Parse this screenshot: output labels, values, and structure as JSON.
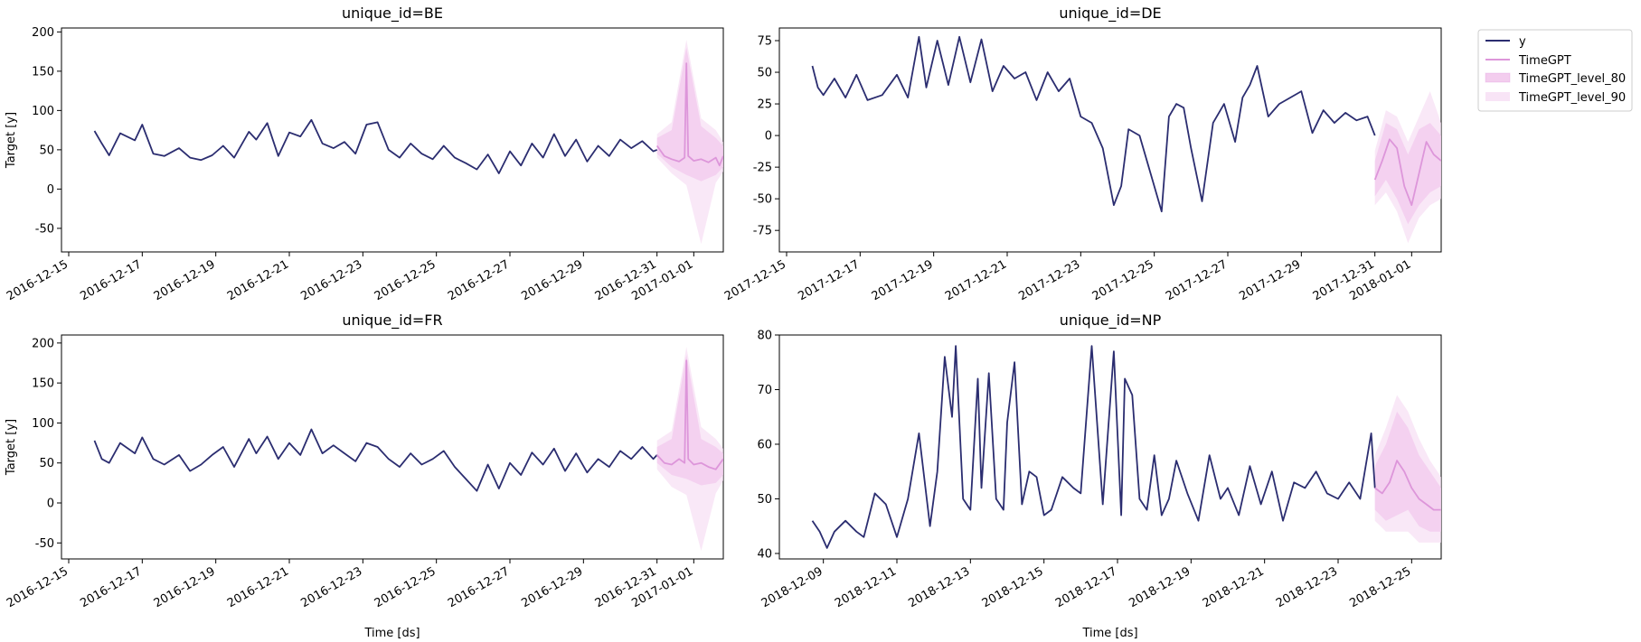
{
  "colors": {
    "actual": "#2b2d70",
    "forecast": "#dd96da",
    "band80": "#f3cdee",
    "band90": "#f8e4f6"
  },
  "legend": {
    "position": "outside-right",
    "entries": [
      "y",
      "TimeGPT",
      "TimeGPT_level_80",
      "TimeGPT_level_90"
    ]
  },
  "chart_data": [
    {
      "type": "line",
      "title": "unique_id=BE",
      "xlabel": "",
      "ylabel": "Target [y]",
      "x_range": [
        "2016-12-15",
        "2017-01-01"
      ],
      "ylim": [
        -80,
        205
      ],
      "y_ticks": [
        -50,
        0,
        50,
        100,
        150,
        200
      ],
      "x_ticks": [
        "2016-12-15",
        "2016-12-17",
        "2016-12-19",
        "2016-12-21",
        "2016-12-23",
        "2016-12-25",
        "2016-12-27",
        "2016-12-29",
        "2016-12-31",
        "2017-01-01"
      ],
      "series": [
        {
          "name": "y",
          "x_days": [
            0.7,
            0.9,
            1.1,
            1.4,
            1.8,
            2.0,
            2.3,
            2.6,
            3.0,
            3.3,
            3.6,
            3.9,
            4.2,
            4.5,
            4.9,
            5.1,
            5.4,
            5.7,
            6.0,
            6.3,
            6.6,
            6.9,
            7.2,
            7.5,
            7.8,
            8.1,
            8.4,
            8.7,
            9.0,
            9.3,
            9.6,
            9.9,
            10.2,
            10.5,
            10.8,
            11.1,
            11.4,
            11.7,
            12.0,
            12.3,
            12.6,
            12.9,
            13.2,
            13.5,
            13.8,
            14.1,
            14.4,
            14.7,
            15.0,
            15.3,
            15.6,
            15.9,
            16.0
          ],
          "values": [
            74,
            58,
            43,
            71,
            62,
            82,
            45,
            42,
            52,
            40,
            37,
            43,
            55,
            40,
            73,
            63,
            84,
            42,
            72,
            67,
            88,
            58,
            52,
            60,
            45,
            82,
            85,
            50,
            40,
            58,
            45,
            38,
            55,
            40,
            33,
            25,
            44,
            20,
            48,
            30,
            58,
            40,
            70,
            42,
            63,
            35,
            55,
            42,
            63,
            52,
            61,
            48,
            50
          ]
        },
        {
          "name": "TimeGPT",
          "x_days": [
            16.0,
            16.2,
            16.4,
            16.6,
            16.75,
            16.8,
            16.85,
            17.0,
            17.2,
            17.4,
            17.6,
            17.7,
            17.8
          ],
          "values": [
            55,
            42,
            38,
            35,
            40,
            160,
            42,
            36,
            38,
            34,
            40,
            30,
            42
          ]
        },
        {
          "name": "TimeGPT_level_80",
          "x_days": [
            16.0,
            16.4,
            16.8,
            17.2,
            17.6,
            17.8
          ],
          "lower": [
            45,
            28,
            18,
            10,
            18,
            28
          ],
          "upper": [
            65,
            75,
            180,
            80,
            65,
            55
          ]
        },
        {
          "name": "TimeGPT_level_90",
          "x_days": [
            16.0,
            16.4,
            16.8,
            17.2,
            17.6,
            17.8
          ],
          "lower": [
            40,
            20,
            5,
            -70,
            8,
            22
          ],
          "upper": [
            70,
            85,
            190,
            90,
            75,
            60
          ]
        }
      ]
    },
    {
      "type": "line",
      "title": "unique_id=DE",
      "xlabel": "",
      "ylabel": "",
      "x_range": [
        "2017-12-15",
        "2018-01-01"
      ],
      "ylim": [
        -92,
        85
      ],
      "y_ticks": [
        -75,
        -50,
        -25,
        0,
        25,
        50,
        75
      ],
      "x_ticks": [
        "2017-12-15",
        "2017-12-17",
        "2017-12-19",
        "2017-12-21",
        "2017-12-23",
        "2017-12-25",
        "2017-12-27",
        "2017-12-29",
        "2017-12-31",
        "2018-01-01"
      ],
      "series": [
        {
          "name": "y",
          "x_days": [
            0.7,
            0.85,
            1.0,
            1.3,
            1.6,
            1.9,
            2.2,
            2.6,
            3.0,
            3.3,
            3.6,
            3.8,
            4.1,
            4.4,
            4.7,
            5.0,
            5.3,
            5.6,
            5.9,
            6.2,
            6.5,
            6.8,
            7.1,
            7.4,
            7.7,
            8.0,
            8.3,
            8.6,
            8.9,
            9.1,
            9.3,
            9.6,
            9.9,
            10.2,
            10.4,
            10.6,
            10.8,
            11.0,
            11.3,
            11.6,
            11.9,
            12.2,
            12.4,
            12.6,
            12.8,
            13.1,
            13.4,
            13.7,
            14.0,
            14.3,
            14.6,
            14.9,
            15.2,
            15.5,
            15.8,
            16.0
          ],
          "values": [
            55,
            38,
            32,
            45,
            30,
            48,
            28,
            32,
            48,
            30,
            78,
            38,
            75,
            40,
            78,
            42,
            76,
            35,
            55,
            45,
            50,
            28,
            50,
            35,
            45,
            15,
            10,
            -10,
            -55,
            -40,
            5,
            0,
            -30,
            -60,
            15,
            25,
            22,
            -10,
            -52,
            10,
            25,
            -5,
            30,
            40,
            55,
            15,
            25,
            30,
            35,
            2,
            20,
            10,
            18,
            12,
            15,
            0
          ]
        },
        {
          "name": "TimeGPT",
          "x_days": [
            16.0,
            16.2,
            16.4,
            16.6,
            16.8,
            17.0,
            17.2,
            17.4,
            17.6,
            17.8
          ],
          "values": [
            -35,
            -20,
            -3,
            -10,
            -40,
            -55,
            -30,
            -5,
            -15,
            -20
          ]
        },
        {
          "name": "TimeGPT_level_80",
          "x_days": [
            16.0,
            16.3,
            16.6,
            16.9,
            17.2,
            17.5,
            17.8
          ],
          "lower": [
            -48,
            -35,
            -50,
            -70,
            -55,
            -45,
            -40
          ],
          "upper": [
            -20,
            10,
            5,
            -15,
            5,
            10,
            0
          ]
        },
        {
          "name": "TimeGPT_level_90",
          "x_days": [
            16.0,
            16.3,
            16.6,
            16.9,
            17.2,
            17.5,
            17.8
          ],
          "lower": [
            -55,
            -45,
            -60,
            -85,
            -65,
            -55,
            -50
          ],
          "upper": [
            -12,
            20,
            15,
            -5,
            15,
            35,
            10
          ]
        }
      ]
    },
    {
      "type": "line",
      "title": "unique_id=FR",
      "xlabel": "Time [ds]",
      "ylabel": "Target [y]",
      "x_range": [
        "2016-12-15",
        "2017-01-01"
      ],
      "ylim": [
        -70,
        210
      ],
      "y_ticks": [
        -50,
        0,
        50,
        100,
        150,
        200
      ],
      "x_ticks": [
        "2016-12-15",
        "2016-12-17",
        "2016-12-19",
        "2016-12-21",
        "2016-12-23",
        "2016-12-25",
        "2016-12-27",
        "2016-12-29",
        "2016-12-31",
        "2017-01-01"
      ],
      "series": [
        {
          "name": "y",
          "x_days": [
            0.7,
            0.9,
            1.1,
            1.4,
            1.8,
            2.0,
            2.3,
            2.6,
            3.0,
            3.3,
            3.6,
            3.9,
            4.2,
            4.5,
            4.9,
            5.1,
            5.4,
            5.7,
            6.0,
            6.3,
            6.6,
            6.9,
            7.2,
            7.5,
            7.8,
            8.1,
            8.4,
            8.7,
            9.0,
            9.3,
            9.6,
            9.9,
            10.2,
            10.5,
            10.8,
            11.1,
            11.4,
            11.7,
            12.0,
            12.3,
            12.6,
            12.9,
            13.2,
            13.5,
            13.8,
            14.1,
            14.4,
            14.7,
            15.0,
            15.3,
            15.6,
            15.9,
            16.0
          ],
          "values": [
            78,
            55,
            50,
            75,
            62,
            82,
            55,
            48,
            60,
            40,
            48,
            60,
            70,
            45,
            80,
            62,
            83,
            55,
            75,
            60,
            92,
            62,
            72,
            62,
            52,
            75,
            70,
            55,
            45,
            62,
            48,
            55,
            65,
            45,
            30,
            15,
            48,
            18,
            50,
            35,
            63,
            48,
            68,
            40,
            62,
            38,
            55,
            45,
            65,
            55,
            70,
            55,
            60
          ]
        },
        {
          "name": "TimeGPT",
          "x_days": [
            16.0,
            16.2,
            16.4,
            16.6,
            16.75,
            16.8,
            16.85,
            17.0,
            17.2,
            17.4,
            17.6,
            17.8
          ],
          "values": [
            60,
            50,
            48,
            55,
            50,
            178,
            55,
            48,
            50,
            45,
            42,
            55
          ]
        },
        {
          "name": "TimeGPT_level_80",
          "x_days": [
            16.0,
            16.4,
            16.8,
            17.2,
            17.6,
            17.8
          ],
          "lower": [
            50,
            35,
            30,
            22,
            25,
            35
          ],
          "upper": [
            70,
            80,
            185,
            80,
            70,
            62
          ]
        },
        {
          "name": "TimeGPT_level_90",
          "x_days": [
            16.0,
            16.4,
            16.8,
            17.2,
            17.6,
            17.8
          ],
          "lower": [
            42,
            20,
            10,
            -60,
            12,
            28
          ],
          "upper": [
            78,
            90,
            195,
            95,
            80,
            68
          ]
        }
      ]
    },
    {
      "type": "line",
      "title": "unique_id=NP",
      "xlabel": "Time [ds]",
      "ylabel": "",
      "x_range": [
        "2018-12-08",
        "2018-12-25"
      ],
      "ylim": [
        39,
        80
      ],
      "y_ticks": [
        40,
        50,
        60,
        70,
        80
      ],
      "x_ticks": [
        "2018-12-09",
        "2018-12-11",
        "2018-12-13",
        "2018-12-15",
        "2018-12-17",
        "2018-12-19",
        "2018-12-21",
        "2018-12-23",
        "2018-12-25"
      ],
      "series": [
        {
          "name": "y",
          "x_days": [
            0.7,
            0.9,
            1.1,
            1.3,
            1.6,
            1.9,
            2.1,
            2.4,
            2.7,
            3.0,
            3.3,
            3.6,
            3.9,
            4.1,
            4.3,
            4.5,
            4.6,
            4.8,
            5.0,
            5.2,
            5.3,
            5.5,
            5.7,
            5.9,
            6.0,
            6.2,
            6.4,
            6.6,
            6.8,
            7.0,
            7.2,
            7.5,
            7.8,
            8.0,
            8.3,
            8.6,
            8.9,
            9.1,
            9.2,
            9.4,
            9.6,
            9.8,
            10.0,
            10.2,
            10.4,
            10.6,
            10.9,
            11.2,
            11.5,
            11.8,
            12.0,
            12.3,
            12.6,
            12.9,
            13.2,
            13.5,
            13.8,
            14.1,
            14.4,
            14.7,
            15.0,
            15.3,
            15.6,
            15.9,
            16.0
          ],
          "values": [
            46,
            44,
            41,
            44,
            46,
            44,
            43,
            51,
            49,
            43,
            50,
            62,
            45,
            55,
            76,
            65,
            78,
            50,
            48,
            72,
            52,
            73,
            50,
            48,
            64,
            75,
            49,
            55,
            54,
            47,
            48,
            54,
            52,
            51,
            78,
            49,
            77,
            47,
            72,
            69,
            50,
            48,
            58,
            47,
            50,
            57,
            51,
            46,
            58,
            50,
            52,
            47,
            56,
            49,
            55,
            46,
            53,
            52,
            55,
            51,
            50,
            53,
            50,
            62,
            52
          ]
        },
        {
          "name": "TimeGPT",
          "x_days": [
            16.0,
            16.2,
            16.4,
            16.6,
            16.8,
            17.0,
            17.2,
            17.4,
            17.6,
            17.8
          ],
          "values": [
            52,
            51,
            53,
            57,
            55,
            52,
            50,
            49,
            48,
            48
          ]
        },
        {
          "name": "TimeGPT_level_80",
          "x_days": [
            16.0,
            16.3,
            16.6,
            16.9,
            17.2,
            17.5,
            17.8
          ],
          "lower": [
            48,
            46,
            47,
            48,
            45,
            44,
            44
          ],
          "upper": [
            56,
            60,
            66,
            63,
            58,
            55,
            52
          ]
        },
        {
          "name": "TimeGPT_level_90",
          "x_days": [
            16.0,
            16.3,
            16.6,
            16.9,
            17.2,
            17.5,
            17.8
          ],
          "lower": [
            46,
            44,
            44,
            44,
            42,
            42,
            42
          ],
          "upper": [
            58,
            63,
            69,
            66,
            61,
            57,
            54
          ]
        }
      ]
    }
  ]
}
